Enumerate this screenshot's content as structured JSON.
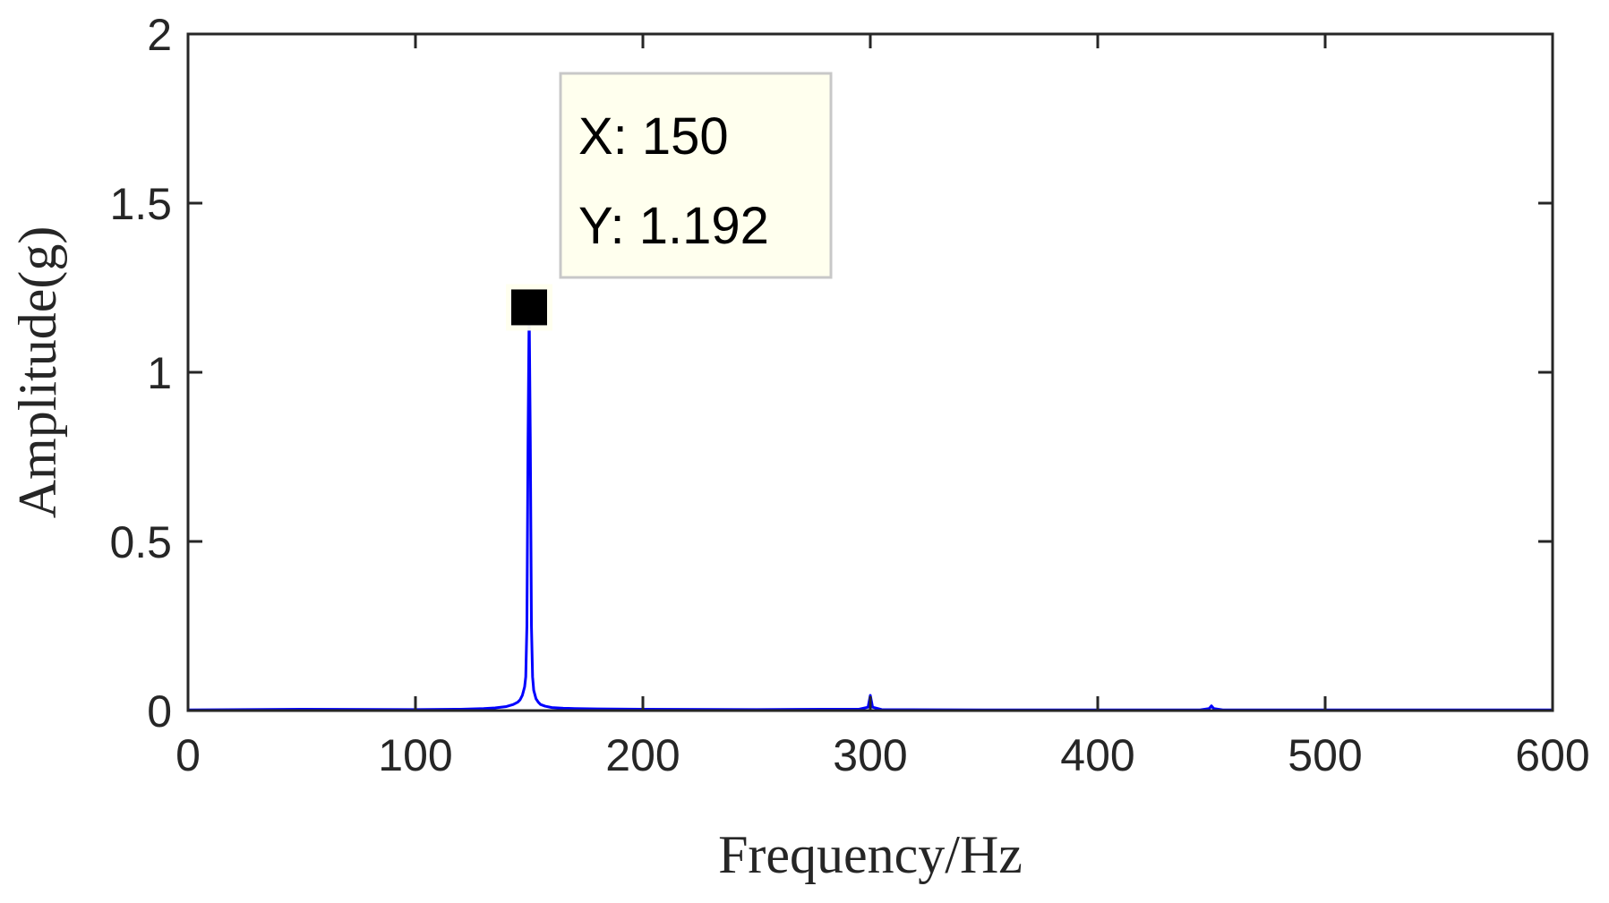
{
  "chart_data": {
    "type": "line",
    "title": "",
    "xlabel": "Frequency/Hz",
    "ylabel": "Amplitude(g)",
    "xlim": [
      0,
      600
    ],
    "ylim": [
      0,
      2
    ],
    "xticks": [
      0,
      100,
      200,
      300,
      400,
      500,
      600
    ],
    "yticks": [
      0,
      0.5,
      1,
      1.5,
      2
    ],
    "xtick_labels": [
      "0",
      "100",
      "200",
      "300",
      "400",
      "500",
      "600"
    ],
    "ytick_labels": [
      "0",
      "0.5",
      "1",
      "1.5",
      "2"
    ],
    "grid": false,
    "legend": "none",
    "series": [
      {
        "color": "#0000ff",
        "x": [
          0,
          50,
          100,
          120,
          130,
          135,
          140,
          143,
          145,
          146,
          147,
          148,
          148.5,
          149,
          149.5,
          150,
          150.5,
          151,
          151.5,
          152,
          153,
          154,
          155,
          157,
          160,
          165,
          170,
          180,
          200,
          250,
          280,
          295,
          299,
          300,
          301,
          305,
          350,
          400,
          445,
          449,
          450,
          451,
          455,
          500,
          550,
          600
        ],
        "y": [
          0.002,
          0.004,
          0.003,
          0.004,
          0.006,
          0.008,
          0.012,
          0.018,
          0.025,
          0.032,
          0.045,
          0.07,
          0.1,
          0.25,
          0.8,
          1.192,
          0.8,
          0.25,
          0.1,
          0.06,
          0.035,
          0.025,
          0.018,
          0.013,
          0.009,
          0.007,
          0.006,
          0.005,
          0.004,
          0.003,
          0.004,
          0.004,
          0.01,
          0.045,
          0.01,
          0.003,
          0.002,
          0.002,
          0.002,
          0.006,
          0.014,
          0.006,
          0.002,
          0.002,
          0.002,
          0.002
        ]
      }
    ],
    "datatip": {
      "x": 150,
      "y": 1.192,
      "x_text": "X: 150",
      "y_text": "Y: 1.192",
      "background": "#ffffee",
      "border": "#c8c8c8"
    }
  }
}
